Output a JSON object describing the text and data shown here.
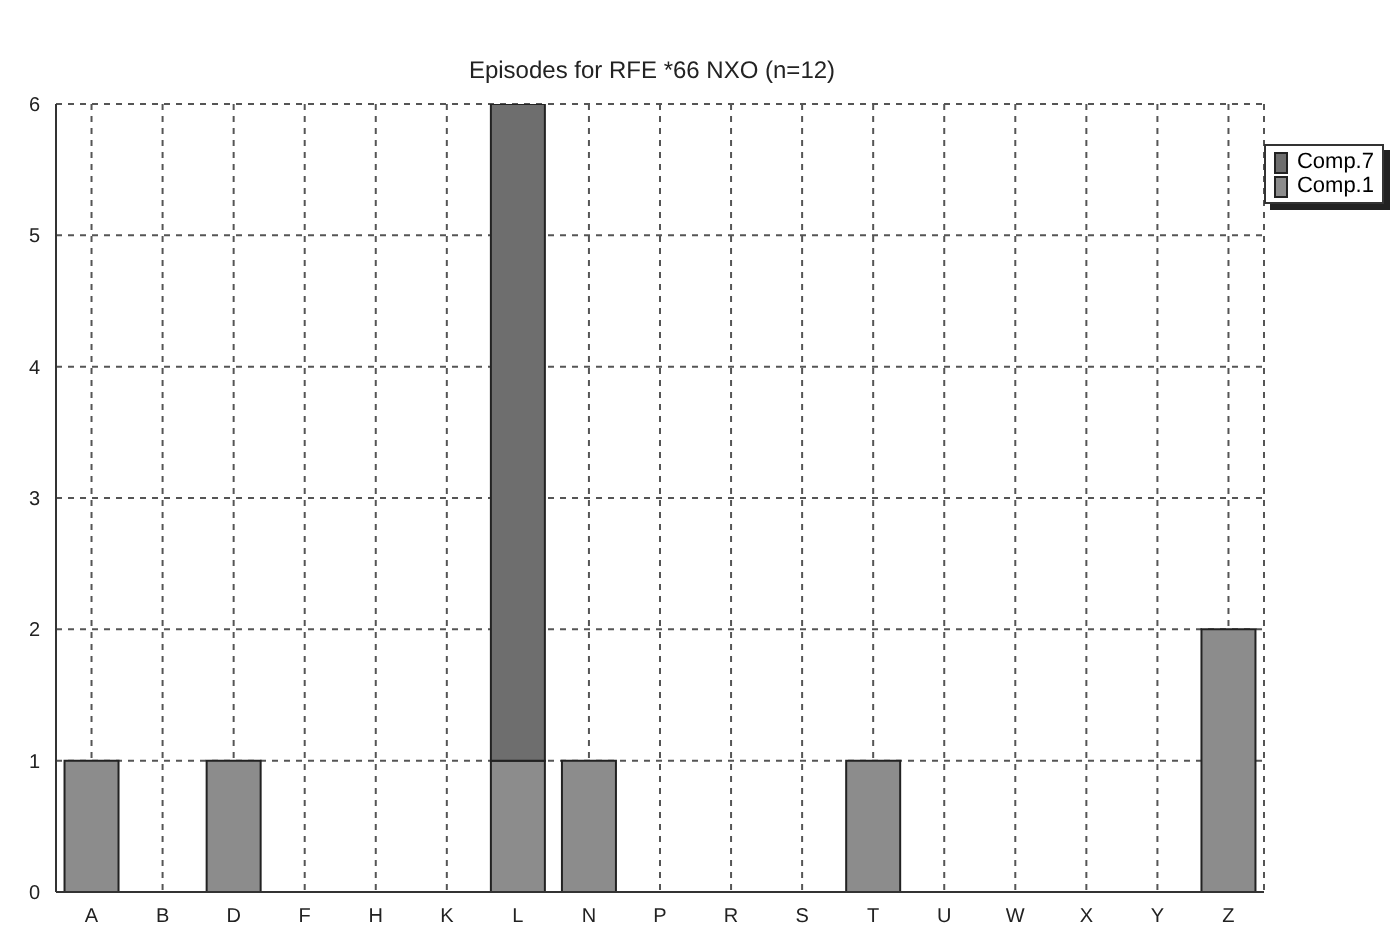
{
  "chart_data": {
    "type": "bar",
    "title": "Episodes for RFE *66 NXO (n=12)",
    "categories": [
      "A",
      "B",
      "D",
      "F",
      "H",
      "K",
      "L",
      "N",
      "P",
      "R",
      "S",
      "T",
      "U",
      "W",
      "X",
      "Y",
      "Z"
    ],
    "stacked": true,
    "series": [
      {
        "name": "Comp.1",
        "color": "#8c8c8c",
        "values": [
          1,
          0,
          1,
          0,
          0,
          0,
          1,
          1,
          0,
          0,
          0,
          1,
          0,
          0,
          0,
          0,
          2
        ]
      },
      {
        "name": "Comp.7",
        "color": "#6e6e6e",
        "values": [
          0,
          0,
          0,
          0,
          0,
          0,
          5,
          0,
          0,
          0,
          0,
          0,
          0,
          0,
          0,
          0,
          0
        ]
      }
    ],
    "ylim": [
      0,
      6
    ],
    "yticks": [
      0,
      1,
      2,
      3,
      4,
      5,
      6
    ],
    "grid": true,
    "legend": "top right"
  }
}
